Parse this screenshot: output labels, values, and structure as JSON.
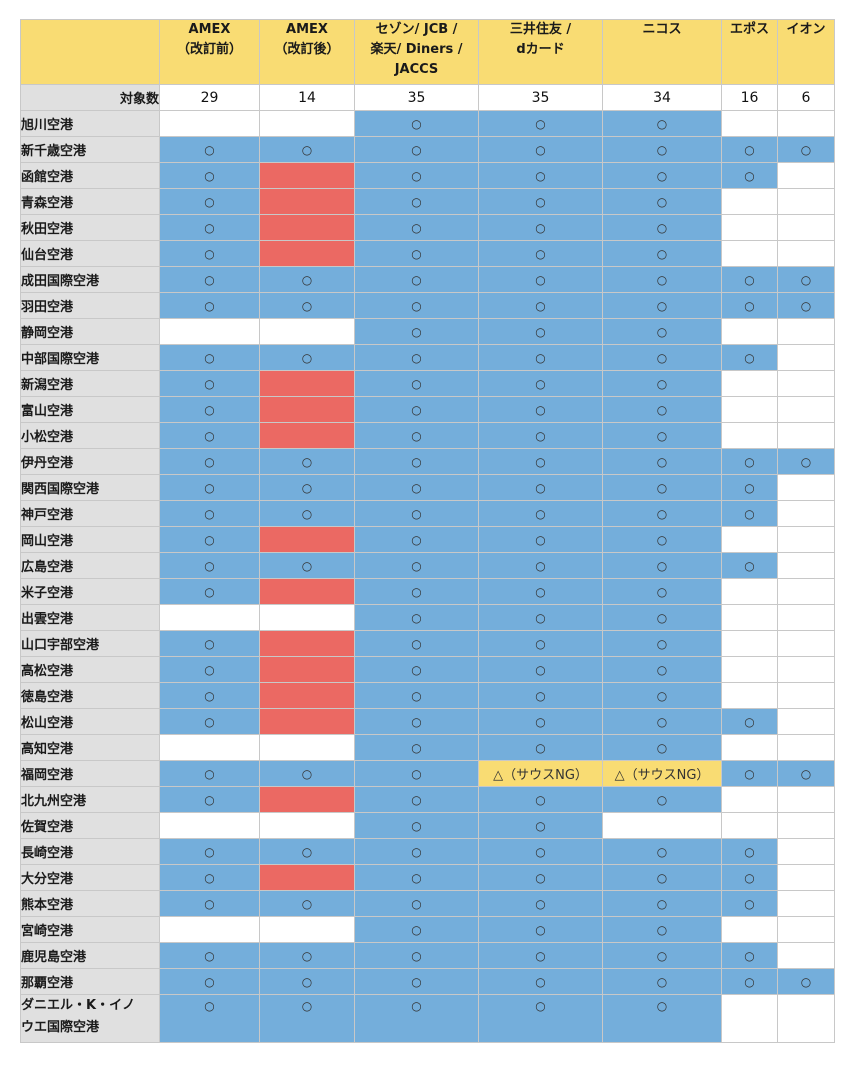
{
  "table": {
    "headers": [
      "",
      "AMEX\n（改訂前）",
      "AMEX\n（改訂後）",
      "セゾン/ JCB /\n楽天/ Diners /\nJACCS",
      "三井住友 /\ndカード",
      "ニコス",
      "エポス",
      "イオン"
    ],
    "count_label": "対象数",
    "counts": [
      "29",
      "14",
      "35",
      "35",
      "34",
      "16",
      "6"
    ],
    "legend_colors": {
      "available": "#74aedb",
      "removed": "#eb6963",
      "partial": "#f9dc73",
      "none": "#ffffff",
      "header": "#f9dc73",
      "row_label": "#e0e0e0"
    },
    "rows": [
      {
        "name": "旭川空港",
        "cells": [
          {
            "t": "",
            "c": "w"
          },
          {
            "t": "",
            "c": "w"
          },
          {
            "t": "○",
            "c": "b"
          },
          {
            "t": "○",
            "c": "b"
          },
          {
            "t": "○",
            "c": "b"
          },
          {
            "t": "",
            "c": "w"
          },
          {
            "t": "",
            "c": "w"
          }
        ]
      },
      {
        "name": "新千歳空港",
        "cells": [
          {
            "t": "○",
            "c": "b"
          },
          {
            "t": "○",
            "c": "b"
          },
          {
            "t": "○",
            "c": "b"
          },
          {
            "t": "○",
            "c": "b"
          },
          {
            "t": "○",
            "c": "b"
          },
          {
            "t": "○",
            "c": "b"
          },
          {
            "t": "○",
            "c": "b"
          }
        ]
      },
      {
        "name": "函館空港",
        "cells": [
          {
            "t": "○",
            "c": "b"
          },
          {
            "t": "",
            "c": "r"
          },
          {
            "t": "○",
            "c": "b"
          },
          {
            "t": "○",
            "c": "b"
          },
          {
            "t": "○",
            "c": "b"
          },
          {
            "t": "○",
            "c": "b"
          },
          {
            "t": "",
            "c": "w"
          }
        ]
      },
      {
        "name": "青森空港",
        "cells": [
          {
            "t": "○",
            "c": "b"
          },
          {
            "t": "",
            "c": "r"
          },
          {
            "t": "○",
            "c": "b"
          },
          {
            "t": "○",
            "c": "b"
          },
          {
            "t": "○",
            "c": "b"
          },
          {
            "t": "",
            "c": "w"
          },
          {
            "t": "",
            "c": "w"
          }
        ]
      },
      {
        "name": "秋田空港",
        "cells": [
          {
            "t": "○",
            "c": "b"
          },
          {
            "t": "",
            "c": "r"
          },
          {
            "t": "○",
            "c": "b"
          },
          {
            "t": "○",
            "c": "b"
          },
          {
            "t": "○",
            "c": "b"
          },
          {
            "t": "",
            "c": "w"
          },
          {
            "t": "",
            "c": "w"
          }
        ]
      },
      {
        "name": "仙台空港",
        "cells": [
          {
            "t": "○",
            "c": "b"
          },
          {
            "t": "",
            "c": "r"
          },
          {
            "t": "○",
            "c": "b"
          },
          {
            "t": "○",
            "c": "b"
          },
          {
            "t": "○",
            "c": "b"
          },
          {
            "t": "",
            "c": "w"
          },
          {
            "t": "",
            "c": "w"
          }
        ]
      },
      {
        "name": "成田国際空港",
        "cells": [
          {
            "t": "○",
            "c": "b"
          },
          {
            "t": "○",
            "c": "b"
          },
          {
            "t": "○",
            "c": "b"
          },
          {
            "t": "○",
            "c": "b"
          },
          {
            "t": "○",
            "c": "b"
          },
          {
            "t": "○",
            "c": "b"
          },
          {
            "t": "○",
            "c": "b"
          }
        ]
      },
      {
        "name": "羽田空港",
        "cells": [
          {
            "t": "○",
            "c": "b"
          },
          {
            "t": "○",
            "c": "b"
          },
          {
            "t": "○",
            "c": "b"
          },
          {
            "t": "○",
            "c": "b"
          },
          {
            "t": "○",
            "c": "b"
          },
          {
            "t": "○",
            "c": "b"
          },
          {
            "t": "○",
            "c": "b"
          }
        ]
      },
      {
        "name": "静岡空港",
        "cells": [
          {
            "t": "",
            "c": "w"
          },
          {
            "t": "",
            "c": "w"
          },
          {
            "t": "○",
            "c": "b"
          },
          {
            "t": "○",
            "c": "b"
          },
          {
            "t": "○",
            "c": "b"
          },
          {
            "t": "",
            "c": "w"
          },
          {
            "t": "",
            "c": "w"
          }
        ]
      },
      {
        "name": "中部国際空港",
        "cells": [
          {
            "t": "○",
            "c": "b"
          },
          {
            "t": "○",
            "c": "b"
          },
          {
            "t": "○",
            "c": "b"
          },
          {
            "t": "○",
            "c": "b"
          },
          {
            "t": "○",
            "c": "b"
          },
          {
            "t": "○",
            "c": "b"
          },
          {
            "t": "",
            "c": "w"
          }
        ]
      },
      {
        "name": "新潟空港",
        "cells": [
          {
            "t": "○",
            "c": "b"
          },
          {
            "t": "",
            "c": "r"
          },
          {
            "t": "○",
            "c": "b"
          },
          {
            "t": "○",
            "c": "b"
          },
          {
            "t": "○",
            "c": "b"
          },
          {
            "t": "",
            "c": "w"
          },
          {
            "t": "",
            "c": "w"
          }
        ]
      },
      {
        "name": "富山空港",
        "cells": [
          {
            "t": "○",
            "c": "b"
          },
          {
            "t": "",
            "c": "r"
          },
          {
            "t": "○",
            "c": "b"
          },
          {
            "t": "○",
            "c": "b"
          },
          {
            "t": "○",
            "c": "b"
          },
          {
            "t": "",
            "c": "w"
          },
          {
            "t": "",
            "c": "w"
          }
        ]
      },
      {
        "name": "小松空港",
        "cells": [
          {
            "t": "○",
            "c": "b"
          },
          {
            "t": "",
            "c": "r"
          },
          {
            "t": "○",
            "c": "b"
          },
          {
            "t": "○",
            "c": "b"
          },
          {
            "t": "○",
            "c": "b"
          },
          {
            "t": "",
            "c": "w"
          },
          {
            "t": "",
            "c": "w"
          }
        ]
      },
      {
        "name": "伊丹空港",
        "cells": [
          {
            "t": "○",
            "c": "b"
          },
          {
            "t": "○",
            "c": "b"
          },
          {
            "t": "○",
            "c": "b"
          },
          {
            "t": "○",
            "c": "b"
          },
          {
            "t": "○",
            "c": "b"
          },
          {
            "t": "○",
            "c": "b"
          },
          {
            "t": "○",
            "c": "b"
          }
        ]
      },
      {
        "name": "関西国際空港",
        "cells": [
          {
            "t": "○",
            "c": "b"
          },
          {
            "t": "○",
            "c": "b"
          },
          {
            "t": "○",
            "c": "b"
          },
          {
            "t": "○",
            "c": "b"
          },
          {
            "t": "○",
            "c": "b"
          },
          {
            "t": "○",
            "c": "b"
          },
          {
            "t": "",
            "c": "w"
          }
        ]
      },
      {
        "name": "神戸空港",
        "cells": [
          {
            "t": "○",
            "c": "b"
          },
          {
            "t": "○",
            "c": "b"
          },
          {
            "t": "○",
            "c": "b"
          },
          {
            "t": "○",
            "c": "b"
          },
          {
            "t": "○",
            "c": "b"
          },
          {
            "t": "○",
            "c": "b"
          },
          {
            "t": "",
            "c": "w"
          }
        ]
      },
      {
        "name": "岡山空港",
        "cells": [
          {
            "t": "○",
            "c": "b"
          },
          {
            "t": "",
            "c": "r"
          },
          {
            "t": "○",
            "c": "b"
          },
          {
            "t": "○",
            "c": "b"
          },
          {
            "t": "○",
            "c": "b"
          },
          {
            "t": "",
            "c": "w"
          },
          {
            "t": "",
            "c": "w"
          }
        ]
      },
      {
        "name": "広島空港",
        "cells": [
          {
            "t": "○",
            "c": "b"
          },
          {
            "t": "○",
            "c": "b"
          },
          {
            "t": "○",
            "c": "b"
          },
          {
            "t": "○",
            "c": "b"
          },
          {
            "t": "○",
            "c": "b"
          },
          {
            "t": "○",
            "c": "b"
          },
          {
            "t": "",
            "c": "w"
          }
        ]
      },
      {
        "name": "米子空港",
        "cells": [
          {
            "t": "○",
            "c": "b"
          },
          {
            "t": "",
            "c": "r"
          },
          {
            "t": "○",
            "c": "b"
          },
          {
            "t": "○",
            "c": "b"
          },
          {
            "t": "○",
            "c": "b"
          },
          {
            "t": "",
            "c": "w"
          },
          {
            "t": "",
            "c": "w"
          }
        ]
      },
      {
        "name": "出雲空港",
        "cells": [
          {
            "t": "",
            "c": "w"
          },
          {
            "t": "",
            "c": "w"
          },
          {
            "t": "○",
            "c": "b"
          },
          {
            "t": "○",
            "c": "b"
          },
          {
            "t": "○",
            "c": "b"
          },
          {
            "t": "",
            "c": "w"
          },
          {
            "t": "",
            "c": "w"
          }
        ]
      },
      {
        "name": "山口宇部空港",
        "cells": [
          {
            "t": "○",
            "c": "b"
          },
          {
            "t": "",
            "c": "r"
          },
          {
            "t": "○",
            "c": "b"
          },
          {
            "t": "○",
            "c": "b"
          },
          {
            "t": "○",
            "c": "b"
          },
          {
            "t": "",
            "c": "w"
          },
          {
            "t": "",
            "c": "w"
          }
        ]
      },
      {
        "name": "高松空港",
        "cells": [
          {
            "t": "○",
            "c": "b"
          },
          {
            "t": "",
            "c": "r"
          },
          {
            "t": "○",
            "c": "b"
          },
          {
            "t": "○",
            "c": "b"
          },
          {
            "t": "○",
            "c": "b"
          },
          {
            "t": "",
            "c": "w"
          },
          {
            "t": "",
            "c": "w"
          }
        ]
      },
      {
        "name": "徳島空港",
        "cells": [
          {
            "t": "○",
            "c": "b"
          },
          {
            "t": "",
            "c": "r"
          },
          {
            "t": "○",
            "c": "b"
          },
          {
            "t": "○",
            "c": "b"
          },
          {
            "t": "○",
            "c": "b"
          },
          {
            "t": "",
            "c": "w"
          },
          {
            "t": "",
            "c": "w"
          }
        ]
      },
      {
        "name": "松山空港",
        "cells": [
          {
            "t": "○",
            "c": "b"
          },
          {
            "t": "",
            "c": "r"
          },
          {
            "t": "○",
            "c": "b"
          },
          {
            "t": "○",
            "c": "b"
          },
          {
            "t": "○",
            "c": "b"
          },
          {
            "t": "○",
            "c": "b"
          },
          {
            "t": "",
            "c": "w"
          }
        ]
      },
      {
        "name": "高知空港",
        "cells": [
          {
            "t": "",
            "c": "w"
          },
          {
            "t": "",
            "c": "w"
          },
          {
            "t": "○",
            "c": "b"
          },
          {
            "t": "○",
            "c": "b"
          },
          {
            "t": "○",
            "c": "b"
          },
          {
            "t": "",
            "c": "w"
          },
          {
            "t": "",
            "c": "w"
          }
        ]
      },
      {
        "name": "福岡空港",
        "cells": [
          {
            "t": "○",
            "c": "b"
          },
          {
            "t": "○",
            "c": "b"
          },
          {
            "t": "○",
            "c": "b"
          },
          {
            "t": "△（サウスNG）",
            "c": "y"
          },
          {
            "t": "△（サウスNG）",
            "c": "y"
          },
          {
            "t": "○",
            "c": "b"
          },
          {
            "t": "○",
            "c": "b"
          }
        ]
      },
      {
        "name": "北九州空港",
        "cells": [
          {
            "t": "○",
            "c": "b"
          },
          {
            "t": "",
            "c": "r"
          },
          {
            "t": "○",
            "c": "b"
          },
          {
            "t": "○",
            "c": "b"
          },
          {
            "t": "○",
            "c": "b"
          },
          {
            "t": "",
            "c": "w"
          },
          {
            "t": "",
            "c": "w"
          }
        ]
      },
      {
        "name": "佐賀空港",
        "cells": [
          {
            "t": "",
            "c": "w"
          },
          {
            "t": "",
            "c": "w"
          },
          {
            "t": "○",
            "c": "b"
          },
          {
            "t": "○",
            "c": "b"
          },
          {
            "t": "",
            "c": "w"
          },
          {
            "t": "",
            "c": "w"
          },
          {
            "t": "",
            "c": "w"
          }
        ]
      },
      {
        "name": "長崎空港",
        "cells": [
          {
            "t": "○",
            "c": "b"
          },
          {
            "t": "○",
            "c": "b"
          },
          {
            "t": "○",
            "c": "b"
          },
          {
            "t": "○",
            "c": "b"
          },
          {
            "t": "○",
            "c": "b"
          },
          {
            "t": "○",
            "c": "b"
          },
          {
            "t": "",
            "c": "w"
          }
        ]
      },
      {
        "name": "大分空港",
        "cells": [
          {
            "t": "○",
            "c": "b"
          },
          {
            "t": "",
            "c": "r"
          },
          {
            "t": "○",
            "c": "b"
          },
          {
            "t": "○",
            "c": "b"
          },
          {
            "t": "○",
            "c": "b"
          },
          {
            "t": "○",
            "c": "b"
          },
          {
            "t": "",
            "c": "w"
          }
        ]
      },
      {
        "name": "熊本空港",
        "cells": [
          {
            "t": "○",
            "c": "b"
          },
          {
            "t": "○",
            "c": "b"
          },
          {
            "t": "○",
            "c": "b"
          },
          {
            "t": "○",
            "c": "b"
          },
          {
            "t": "○",
            "c": "b"
          },
          {
            "t": "○",
            "c": "b"
          },
          {
            "t": "",
            "c": "w"
          }
        ]
      },
      {
        "name": "宮崎空港",
        "cells": [
          {
            "t": "",
            "c": "w"
          },
          {
            "t": "",
            "c": "w"
          },
          {
            "t": "○",
            "c": "b"
          },
          {
            "t": "○",
            "c": "b"
          },
          {
            "t": "○",
            "c": "b"
          },
          {
            "t": "",
            "c": "w"
          },
          {
            "t": "",
            "c": "w"
          }
        ]
      },
      {
        "name": "鹿児島空港",
        "cells": [
          {
            "t": "○",
            "c": "b"
          },
          {
            "t": "○",
            "c": "b"
          },
          {
            "t": "○",
            "c": "b"
          },
          {
            "t": "○",
            "c": "b"
          },
          {
            "t": "○",
            "c": "b"
          },
          {
            "t": "○",
            "c": "b"
          },
          {
            "t": "",
            "c": "w"
          }
        ]
      },
      {
        "name": "那覇空港",
        "cells": [
          {
            "t": "○",
            "c": "b"
          },
          {
            "t": "○",
            "c": "b"
          },
          {
            "t": "○",
            "c": "b"
          },
          {
            "t": "○",
            "c": "b"
          },
          {
            "t": "○",
            "c": "b"
          },
          {
            "t": "○",
            "c": "b"
          },
          {
            "t": "○",
            "c": "b"
          }
        ]
      },
      {
        "name": "ダニエル・K・イノ\nウエ国際空港",
        "cells": [
          {
            "t": "○",
            "c": "b"
          },
          {
            "t": "○",
            "c": "b"
          },
          {
            "t": "○",
            "c": "b"
          },
          {
            "t": "○",
            "c": "b"
          },
          {
            "t": "○",
            "c": "b"
          },
          {
            "t": "",
            "c": "w"
          },
          {
            "t": "",
            "c": "w"
          }
        ]
      }
    ]
  }
}
